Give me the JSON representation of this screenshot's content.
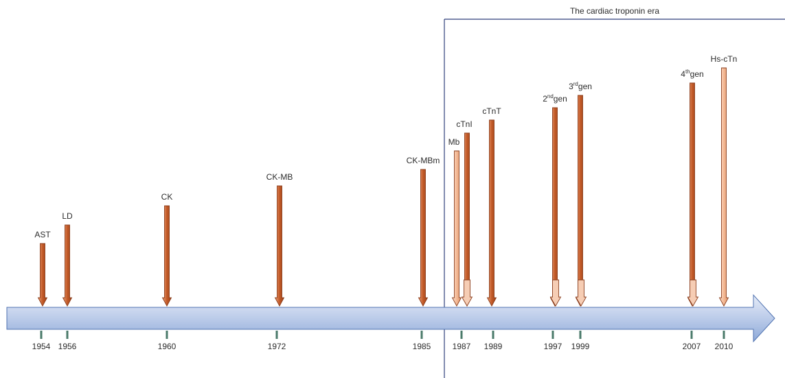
{
  "era_label": "The cardiac troponin era",
  "colors": {
    "arrow_light": "#c8d6ee",
    "arrow_dark": "#7f9bd0",
    "arrow_outline": "#4f72b0",
    "marker_dark": "#b6522a",
    "marker_light": "#f3c3a8",
    "marker_outline": "#8a3d1c",
    "era_box": "#2e3f7a",
    "tick": "#4a7a6a"
  },
  "markers": [
    {
      "id": "ast",
      "label": "AST",
      "year": "1954",
      "level": 0.3,
      "style": "dark"
    },
    {
      "id": "ld",
      "label": "LD",
      "year": "1956",
      "level": 0.36,
      "style": "dark"
    },
    {
      "id": "ck",
      "label": "CK",
      "year": "1960",
      "level": 0.42,
      "style": "dark"
    },
    {
      "id": "ck-mb",
      "label": "CK-MB",
      "year": "1972",
      "level": 0.48,
      "style": "dark"
    },
    {
      "id": "ck-mbm",
      "label": "CK-MBm",
      "year": "1985",
      "level": 0.55,
      "style": "dark"
    },
    {
      "id": "mb",
      "label": "Mb",
      "year": "",
      "level": 0.6,
      "style": "light"
    },
    {
      "id": "ctni",
      "label": "cTnI",
      "year": "1987",
      "level": 0.65,
      "style": "dark"
    },
    {
      "id": "ctnt",
      "label": "cTnT",
      "year": "1989",
      "level": 0.69,
      "style": "dark"
    },
    {
      "id": "gen2",
      "label": "2",
      "sup": "nd",
      "suffix": "gen",
      "year": "1997",
      "level": 0.73,
      "style": "dark"
    },
    {
      "id": "gen3",
      "label": "3",
      "sup": "rd",
      "suffix": "gen",
      "year": "1999",
      "level": 0.77,
      "style": "dark"
    },
    {
      "id": "gen4",
      "label": "4",
      "sup": "th",
      "suffix": "gen",
      "year": "2007",
      "level": 0.83,
      "style": "dark"
    },
    {
      "id": "hs-ctn",
      "label": "Hs-cTn",
      "year": "2010",
      "level": 0.89,
      "style": "light"
    }
  ],
  "extra_outline_markers": [
    {
      "id": "ctni-pair",
      "style": "light"
    },
    {
      "id": "ctnt-pair",
      "style": "light"
    },
    {
      "id": "gen2-pair",
      "style": "light"
    },
    {
      "id": "gen3-pair",
      "style": "light"
    },
    {
      "id": "gen4-pair",
      "style": "light"
    }
  ]
}
